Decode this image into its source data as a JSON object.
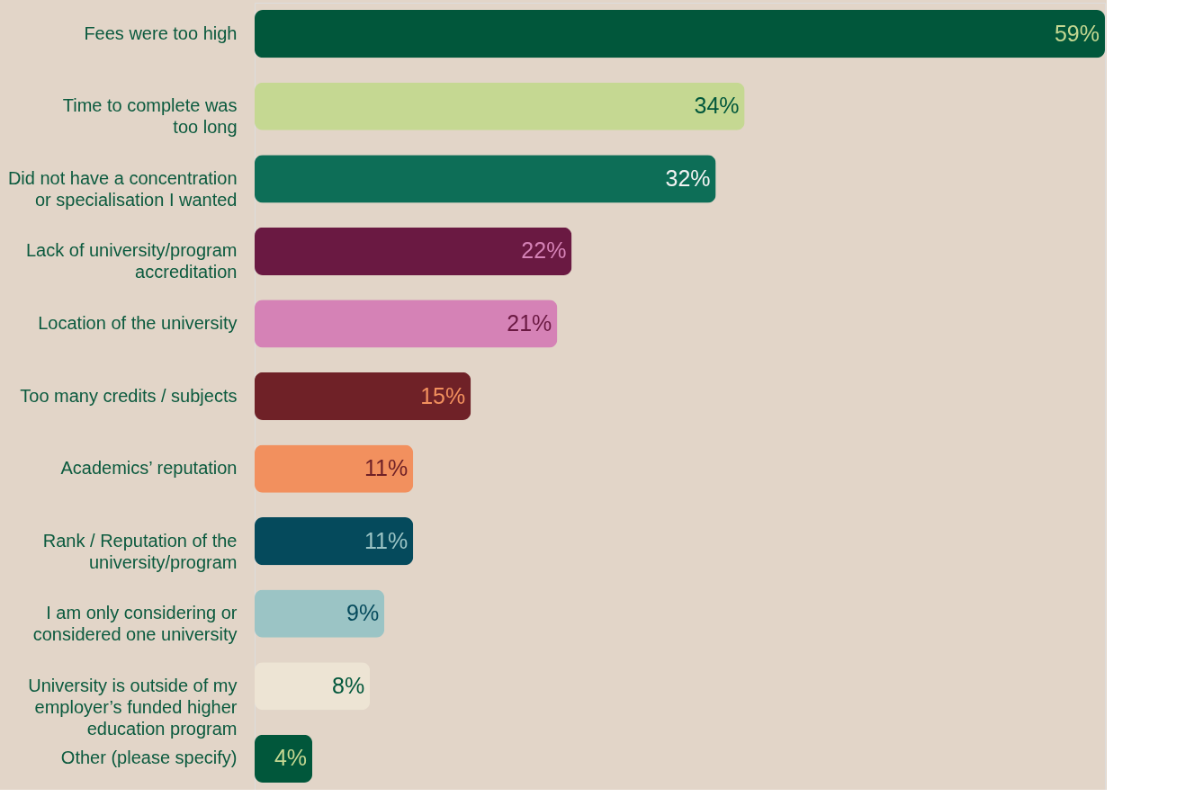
{
  "chart_data": {
    "type": "bar",
    "orientation": "horizontal",
    "categories": [
      "Fees were too high",
      "Time to complete was\ntoo long",
      "Did not have a concentration\nor specialisation I wanted",
      "Lack of university/program\naccreditation",
      "Location of the university",
      "Too many credits / subjects",
      "Academics’ reputation",
      "Rank / Reputation of the\nuniversity/program",
      "I am only considering or\nconsidered one university",
      "University is outside of my\nemployer’s funded higher\neducation program",
      "Other (please specify)"
    ],
    "values": [
      59,
      34,
      32,
      22,
      21,
      15,
      11,
      11,
      9,
      8,
      4
    ],
    "colors": [
      "#01573b",
      "#c5d892",
      "#0d6e57",
      "#6a1942",
      "#d582b6",
      "#6f2127",
      "#f2905e",
      "#054a5c",
      "#9bc4c5",
      "#ede4d4",
      "#01573b"
    ],
    "value_labels": [
      "59%",
      "34%",
      "32%",
      "22%",
      "21%",
      "15%",
      "11%",
      "11%",
      "9%",
      "8%",
      "4%"
    ],
    "grid": false
  }
}
